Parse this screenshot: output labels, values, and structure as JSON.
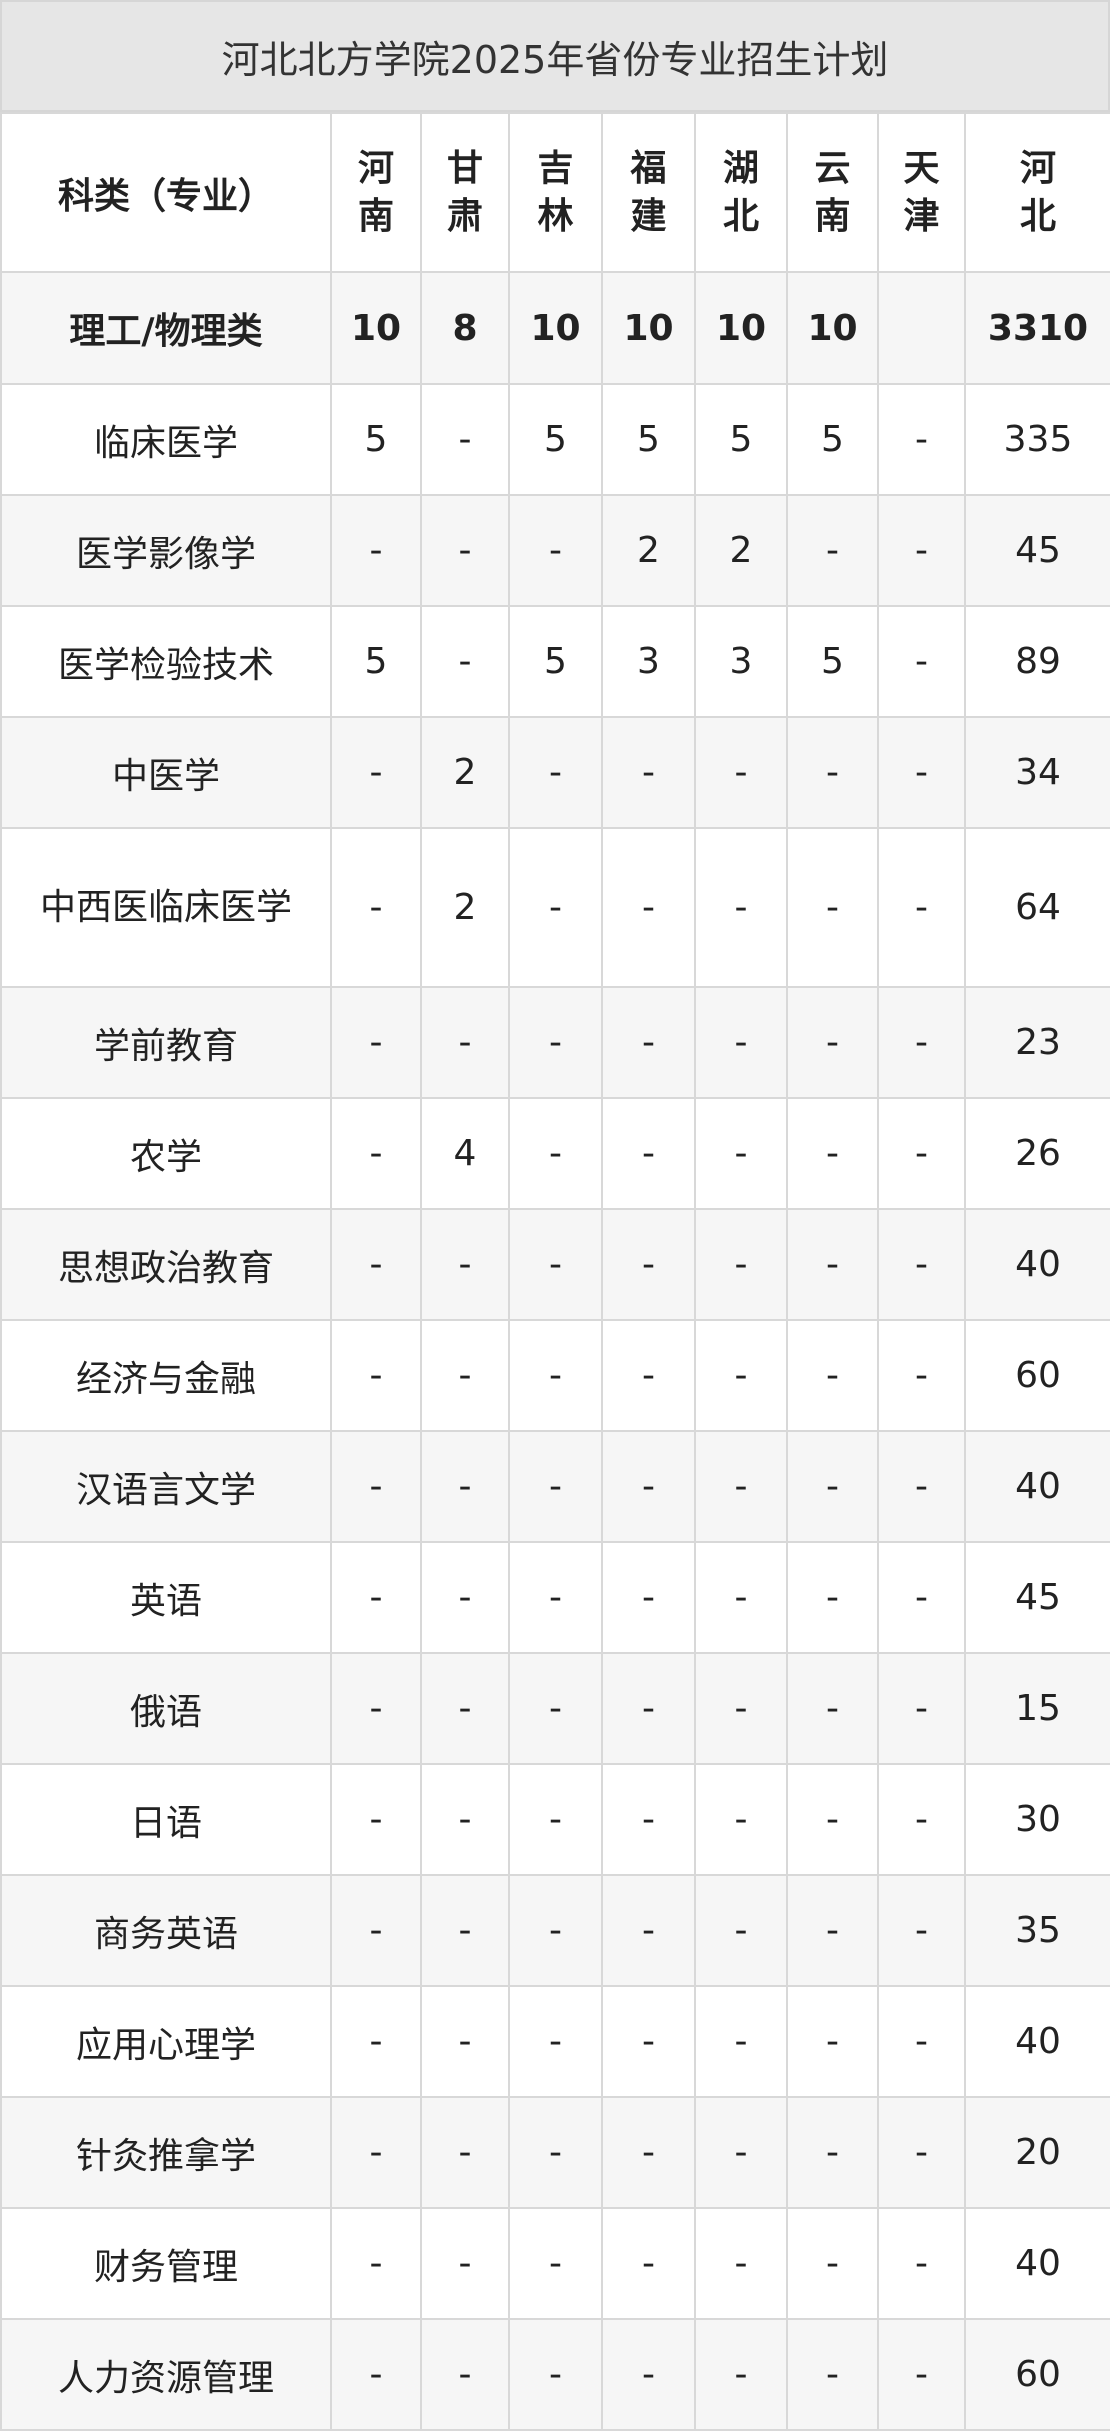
{
  "title": "河北北方学院2025年省份专业招生计划",
  "columns": [
    "科类（专业）",
    "河南",
    "甘肃",
    "吉林",
    "福建",
    "湖北",
    "云南",
    "天津",
    "河北"
  ],
  "summary": {
    "name": "理工/物理类",
    "values": [
      "10",
      "8",
      "10",
      "10",
      "10",
      "10",
      "",
      "3310"
    ]
  },
  "rows": [
    {
      "name": "临床医学",
      "values": [
        "5",
        "-",
        "5",
        "5",
        "5",
        "5",
        "-",
        "335"
      ]
    },
    {
      "name": "医学影像学",
      "values": [
        "-",
        "-",
        "-",
        "2",
        "2",
        "-",
        "-",
        "45"
      ]
    },
    {
      "name": "医学检验技术",
      "values": [
        "5",
        "-",
        "5",
        "3",
        "3",
        "5",
        "-",
        "89"
      ]
    },
    {
      "name": "中医学",
      "values": [
        "-",
        "2",
        "-",
        "-",
        "-",
        "-",
        "-",
        "34"
      ]
    },
    {
      "name": "中西医临床医学",
      "values": [
        "-",
        "2",
        "-",
        "-",
        "-",
        "-",
        "-",
        "64"
      ]
    },
    {
      "name": "学前教育",
      "values": [
        "-",
        "-",
        "-",
        "-",
        "-",
        "-",
        "-",
        "23"
      ]
    },
    {
      "name": "农学",
      "values": [
        "-",
        "4",
        "-",
        "-",
        "-",
        "-",
        "-",
        "26"
      ]
    },
    {
      "name": "思想政治教育",
      "values": [
        "-",
        "-",
        "-",
        "-",
        "-",
        "-",
        "-",
        "40"
      ]
    },
    {
      "name": "经济与金融",
      "values": [
        "-",
        "-",
        "-",
        "-",
        "-",
        "-",
        "-",
        "60"
      ]
    },
    {
      "name": "汉语言文学",
      "values": [
        "-",
        "-",
        "-",
        "-",
        "-",
        "-",
        "-",
        "40"
      ]
    },
    {
      "name": "英语",
      "values": [
        "-",
        "-",
        "-",
        "-",
        "-",
        "-",
        "-",
        "45"
      ]
    },
    {
      "name": "俄语",
      "values": [
        "-",
        "-",
        "-",
        "-",
        "-",
        "-",
        "-",
        "15"
      ]
    },
    {
      "name": "日语",
      "values": [
        "-",
        "-",
        "-",
        "-",
        "-",
        "-",
        "-",
        "30"
      ]
    },
    {
      "name": "商务英语",
      "values": [
        "-",
        "-",
        "-",
        "-",
        "-",
        "-",
        "-",
        "35"
      ]
    },
    {
      "name": "应用心理学",
      "values": [
        "-",
        "-",
        "-",
        "-",
        "-",
        "-",
        "-",
        "40"
      ]
    },
    {
      "name": "针灸推拿学",
      "values": [
        "-",
        "-",
        "-",
        "-",
        "-",
        "-",
        "-",
        "20"
      ]
    },
    {
      "name": "财务管理",
      "values": [
        "-",
        "-",
        "-",
        "-",
        "-",
        "-",
        "-",
        "40"
      ]
    },
    {
      "name": "人力资源管理",
      "values": [
        "-",
        "-",
        "-",
        "-",
        "-",
        "-",
        "-",
        "60"
      ]
    }
  ]
}
